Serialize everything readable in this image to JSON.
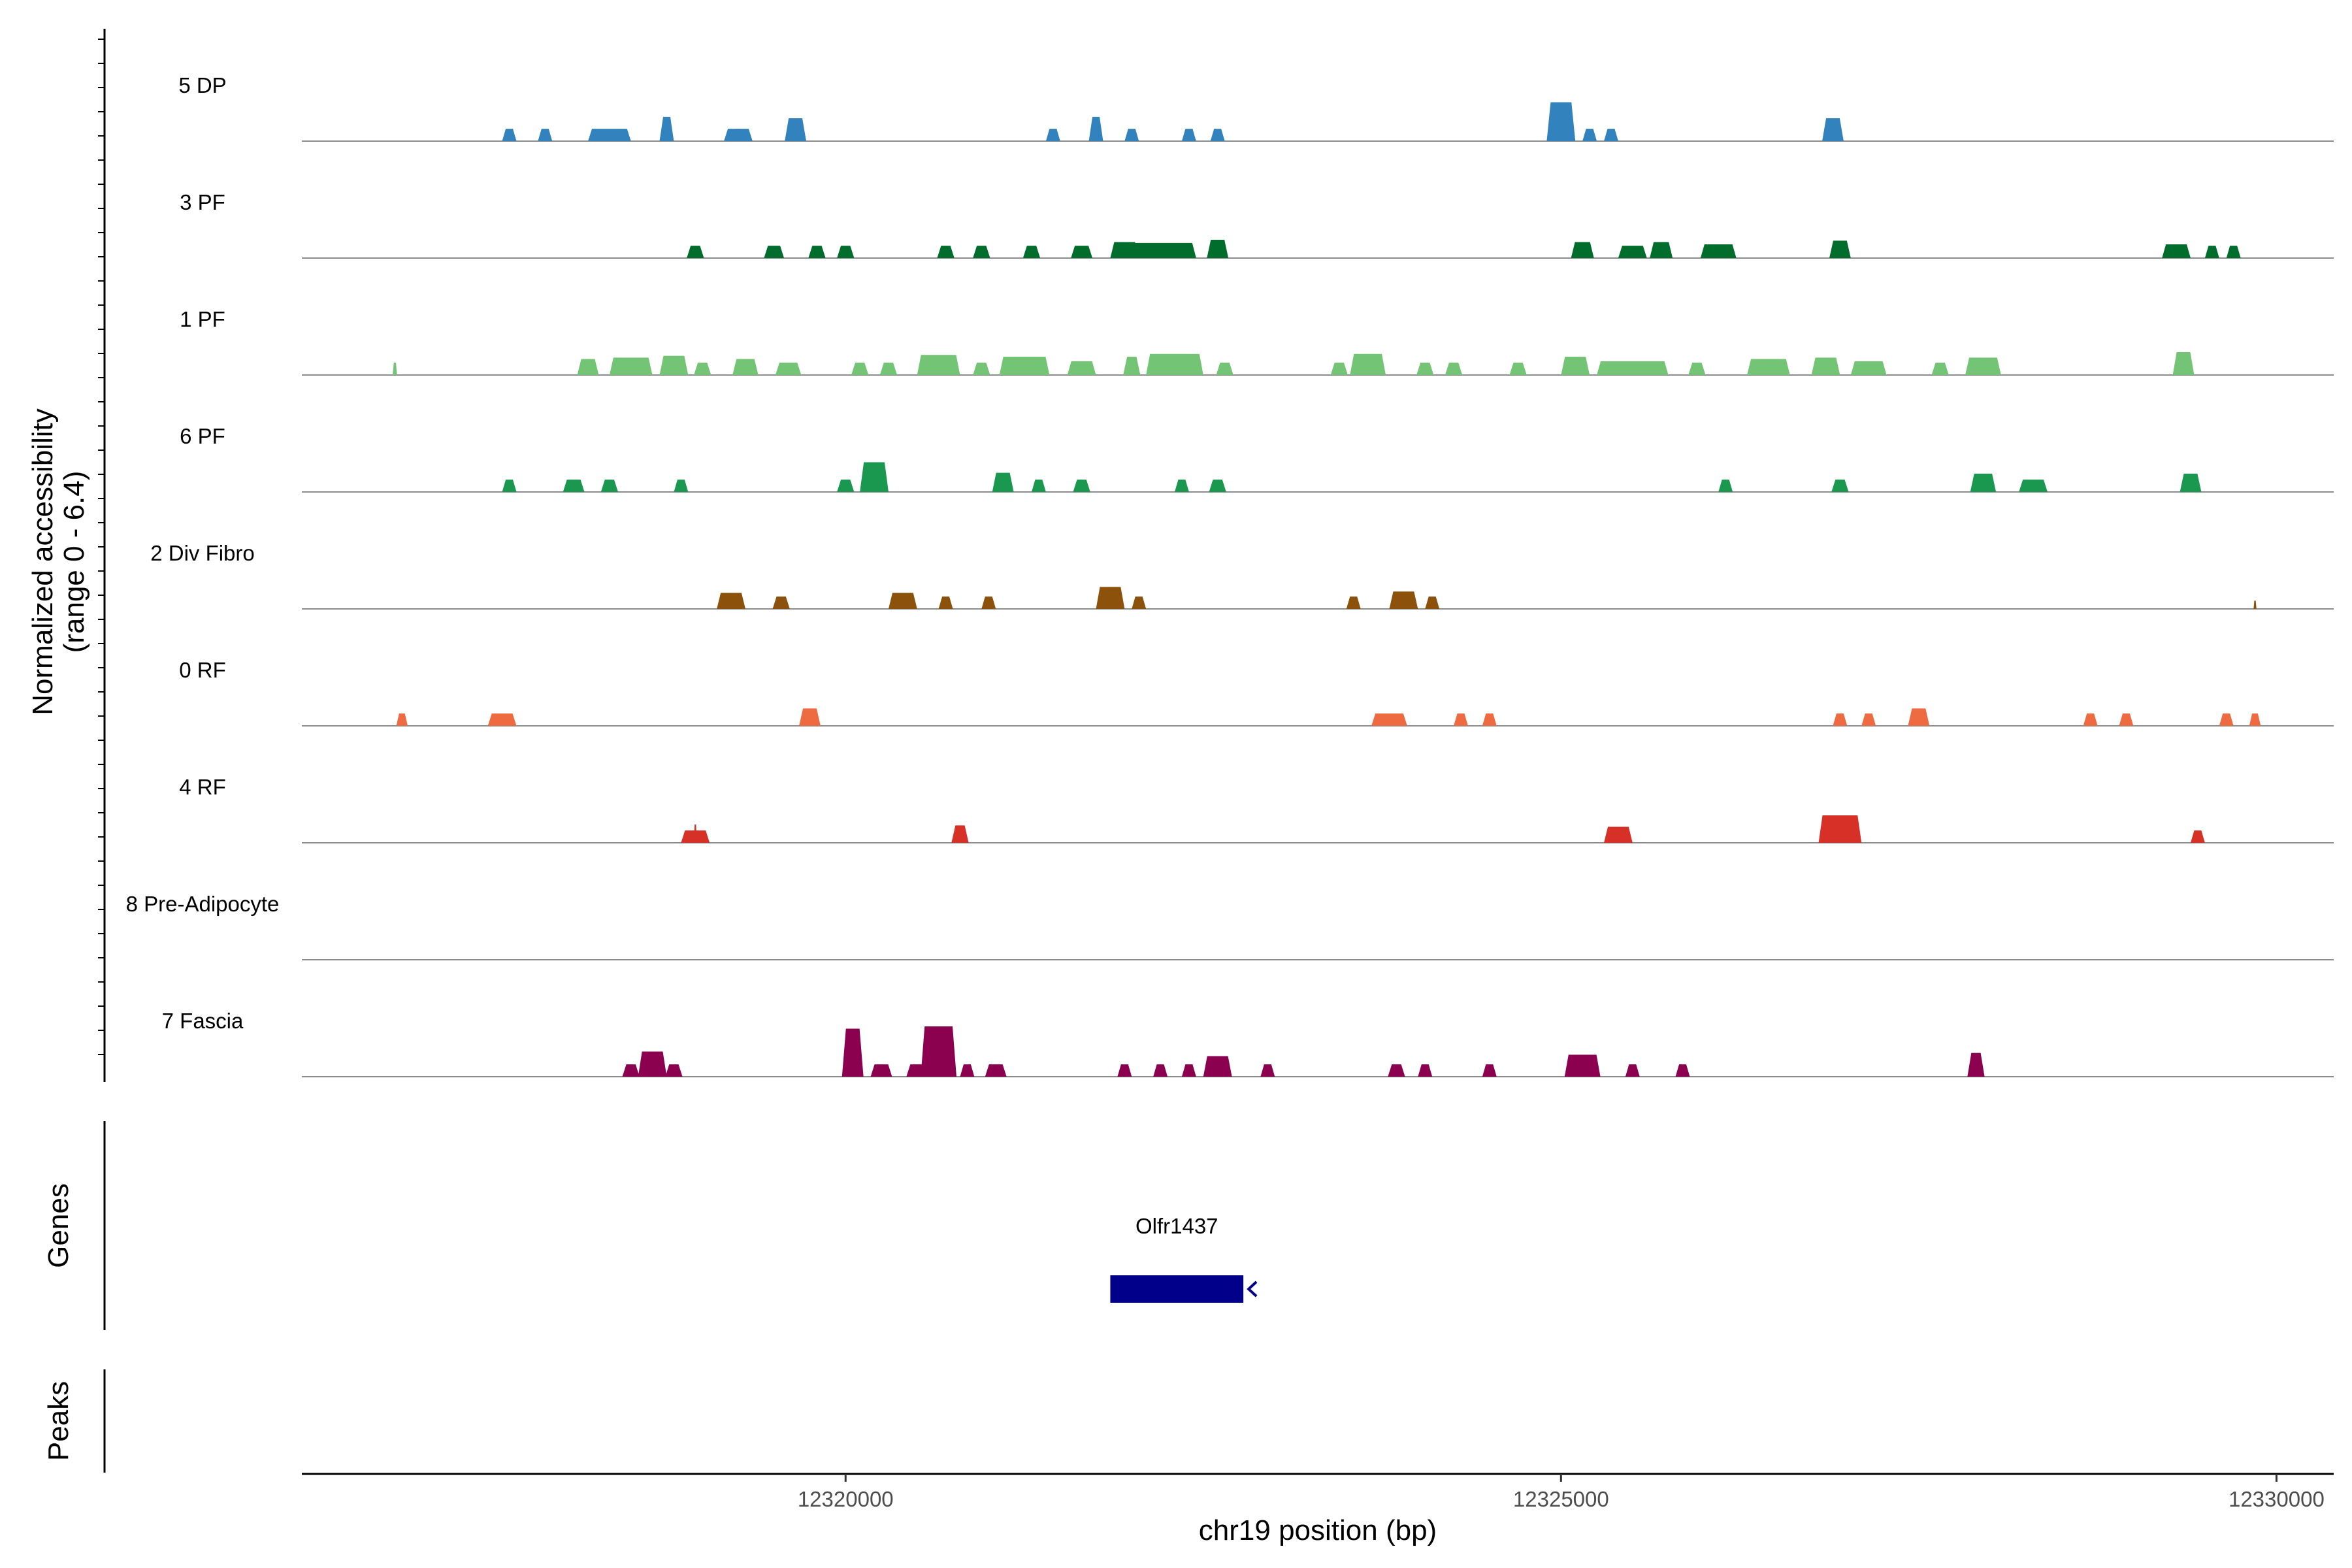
{
  "chart_data": {
    "type": "area",
    "subtype": "genome-browser coverage tracks",
    "xlabel": "chr19 position (bp)",
    "ylabel": [
      "Normalized accessibility",
      "(range 0 - 6.4)"
    ],
    "y_range": [
      0,
      6.4
    ],
    "xlim": [
      12316200,
      12330400
    ],
    "x_ticks": [
      12320000,
      12325000,
      12330000
    ],
    "x_tick_labels": [
      "12320000",
      "12325000",
      "12330000"
    ],
    "genes_title": "Genes",
    "peaks_title": "Peaks",
    "tracks": [
      {
        "name": "5 DP",
        "color": "#3182bd",
        "peaks": [
          [
            12317650,
            100,
            2.7
          ],
          [
            12317900,
            100,
            2.7
          ],
          [
            12318350,
            300,
            2.7
          ],
          [
            12318750,
            100,
            5.3
          ],
          [
            12319250,
            80,
            2.7
          ],
          [
            12319250,
            200,
            2.7
          ],
          [
            12319650,
            100,
            2.7
          ],
          [
            12319650,
            150,
            5.0
          ],
          [
            12321450,
            100,
            2.7
          ],
          [
            12321750,
            100,
            5.3
          ],
          [
            12321750,
            50,
            2.7
          ],
          [
            12322000,
            100,
            2.7
          ],
          [
            12322400,
            100,
            2.7
          ],
          [
            12322600,
            100,
            2.7
          ],
          [
            12325000,
            200,
            8.5
          ],
          [
            12325200,
            100,
            2.7
          ],
          [
            12325350,
            100,
            2.7
          ],
          [
            12326900,
            100,
            2.7
          ],
          [
            12326900,
            150,
            5.0
          ]
        ]
      },
      {
        "name": "3 PF",
        "color": "#006d2c",
        "peaks": [
          [
            12318950,
            120,
            2.7
          ],
          [
            12319500,
            140,
            2.7
          ],
          [
            12319800,
            120,
            2.7
          ],
          [
            12320000,
            120,
            2.7
          ],
          [
            12320700,
            120,
            2.7
          ],
          [
            12320950,
            120,
            2.7
          ],
          [
            12321300,
            120,
            2.7
          ],
          [
            12321650,
            150,
            2.7
          ],
          [
            12321950,
            200,
            3.5
          ],
          [
            12322200,
            500,
            3.3
          ],
          [
            12322600,
            150,
            4.0
          ],
          [
            12325150,
            160,
            3.5
          ],
          [
            12325500,
            200,
            2.7
          ],
          [
            12325700,
            160,
            3.5
          ],
          [
            12326100,
            250,
            3.0
          ],
          [
            12326950,
            150,
            3.8
          ],
          [
            12329300,
            200,
            3.0
          ],
          [
            12329550,
            100,
            2.7
          ],
          [
            12329700,
            100,
            2.7
          ]
        ]
      },
      {
        "name": "1 PF",
        "color": "#74c476",
        "peaks": [
          [
            12316850,
            30,
            2.7
          ],
          [
            12318200,
            150,
            3.5
          ],
          [
            12318500,
            300,
            3.8
          ],
          [
            12318800,
            200,
            4.2
          ],
          [
            12319000,
            120,
            2.7
          ],
          [
            12319300,
            180,
            3.5
          ],
          [
            12319600,
            180,
            2.7
          ],
          [
            12320100,
            120,
            2.7
          ],
          [
            12320300,
            120,
            2.7
          ],
          [
            12320650,
            300,
            4.4
          ],
          [
            12320950,
            120,
            2.7
          ],
          [
            12321250,
            350,
            4.0
          ],
          [
            12321650,
            200,
            3.0
          ],
          [
            12322000,
            120,
            4.0
          ],
          [
            12322300,
            400,
            4.6
          ],
          [
            12322650,
            120,
            2.7
          ],
          [
            12323450,
            120,
            2.7
          ],
          [
            12323650,
            250,
            4.6
          ],
          [
            12324050,
            120,
            2.7
          ],
          [
            12324250,
            120,
            2.7
          ],
          [
            12324700,
            120,
            2.7
          ],
          [
            12325100,
            200,
            4.0
          ],
          [
            12325500,
            500,
            3.0
          ],
          [
            12325950,
            120,
            2.7
          ],
          [
            12326450,
            300,
            3.5
          ],
          [
            12326850,
            200,
            3.8
          ],
          [
            12327150,
            250,
            3.0
          ],
          [
            12327650,
            120,
            2.7
          ],
          [
            12327950,
            250,
            3.8
          ],
          [
            12329350,
            150,
            5.0
          ]
        ]
      },
      {
        "name": "6 PF",
        "color": "#1a9850",
        "peaks": [
          [
            12317650,
            100,
            2.7
          ],
          [
            12318100,
            150,
            2.7
          ],
          [
            12318350,
            120,
            2.7
          ],
          [
            12318850,
            100,
            2.7
          ],
          [
            12320000,
            120,
            2.7
          ],
          [
            12320200,
            200,
            6.5
          ],
          [
            12321100,
            150,
            4.2
          ],
          [
            12321350,
            100,
            2.7
          ],
          [
            12321650,
            120,
            2.7
          ],
          [
            12322350,
            100,
            2.7
          ],
          [
            12322600,
            120,
            2.7
          ],
          [
            12326150,
            100,
            2.7
          ],
          [
            12326950,
            120,
            2.7
          ],
          [
            12327950,
            180,
            4.0
          ],
          [
            12328300,
            200,
            2.7
          ],
          [
            12329400,
            150,
            4.0
          ]
        ]
      },
      {
        "name": "2 Div Fibro",
        "color": "#8c510a",
        "peaks": [
          [
            12319200,
            200,
            3.5
          ],
          [
            12319550,
            120,
            2.7
          ],
          [
            12320400,
            200,
            3.5
          ],
          [
            12320700,
            100,
            2.7
          ],
          [
            12321000,
            100,
            2.7
          ],
          [
            12321850,
            200,
            4.8
          ],
          [
            12322050,
            100,
            2.7
          ],
          [
            12323550,
            100,
            2.7
          ],
          [
            12323900,
            200,
            3.8
          ],
          [
            12324100,
            100,
            2.7
          ],
          [
            12329850,
            20,
            1.8
          ]
        ]
      },
      {
        "name": "0 RF",
        "color": "#ee6a40",
        "peaks": [
          [
            12316900,
            80,
            2.7
          ],
          [
            12317600,
            200,
            2.7
          ],
          [
            12319750,
            150,
            3.8
          ],
          [
            12323800,
            250,
            2.7
          ],
          [
            12324300,
            100,
            2.7
          ],
          [
            12324500,
            100,
            2.7
          ],
          [
            12326950,
            100,
            2.7
          ],
          [
            12327150,
            100,
            2.7
          ],
          [
            12327500,
            150,
            3.8
          ],
          [
            12328700,
            100,
            2.7
          ],
          [
            12328950,
            100,
            2.7
          ],
          [
            12329650,
            100,
            2.7
          ],
          [
            12329850,
            80,
            2.7
          ]
        ]
      },
      {
        "name": "4 RF",
        "color": "#d73027",
        "peaks": [
          [
            12318950,
            200,
            2.7
          ],
          [
            12318950,
            20,
            4.0
          ],
          [
            12320800,
            120,
            3.8
          ],
          [
            12325400,
            200,
            3.5
          ],
          [
            12326950,
            300,
            6.0
          ],
          [
            12329450,
            100,
            2.7
          ]
        ]
      },
      {
        "name": "8 Pre-Adipocyte",
        "color": "#999999",
        "peaks": []
      },
      {
        "name": "7 Fascia",
        "color": "#8c0050",
        "peaks": [
          [
            12318500,
            120,
            2.7
          ],
          [
            12318650,
            200,
            5.5
          ],
          [
            12318800,
            120,
            2.7
          ],
          [
            12320050,
            150,
            10.5
          ],
          [
            12320250,
            150,
            2.7
          ],
          [
            12320500,
            150,
            2.7
          ],
          [
            12320650,
            250,
            11.0
          ],
          [
            12320850,
            100,
            2.7
          ],
          [
            12321050,
            150,
            2.7
          ],
          [
            12321950,
            100,
            2.7
          ],
          [
            12322200,
            100,
            2.7
          ],
          [
            12322400,
            100,
            2.7
          ],
          [
            12322600,
            200,
            4.5
          ],
          [
            12322950,
            100,
            2.7
          ],
          [
            12323850,
            120,
            2.7
          ],
          [
            12324050,
            100,
            2.7
          ],
          [
            12324500,
            100,
            2.7
          ],
          [
            12325150,
            250,
            4.8
          ],
          [
            12325500,
            100,
            2.7
          ],
          [
            12325850,
            100,
            2.7
          ],
          [
            12327900,
            120,
            5.2
          ]
        ]
      }
    ],
    "genes": [
      {
        "name": "Olfr1437",
        "start": 12321850,
        "end": 12322780,
        "strand": "-",
        "color": "#00008b"
      }
    ]
  }
}
